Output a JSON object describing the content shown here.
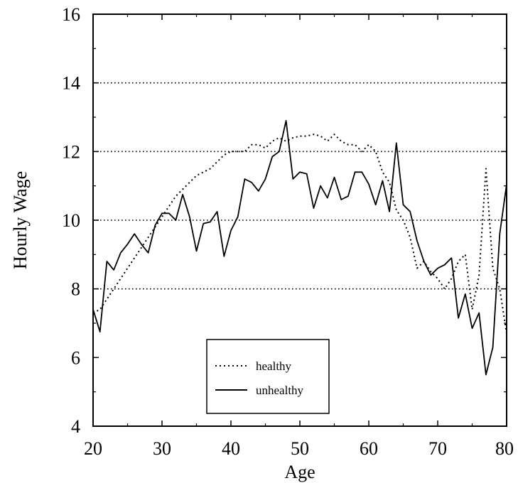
{
  "chart_data": {
    "type": "line",
    "title": "",
    "xlabel": "Age",
    "ylabel": "Hourly Wage",
    "xlim": [
      20,
      80
    ],
    "ylim": [
      4,
      16
    ],
    "xticks": [
      "20",
      "30",
      "40",
      "50",
      "60",
      "70",
      "80"
    ],
    "yticks": [
      "4",
      "6",
      "8",
      "10",
      "12",
      "14",
      "16"
    ],
    "grid": "horizontal dotted lines at 8, 10, 12, 14",
    "legend": {
      "placement": "bottom-left"
    },
    "series": [
      {
        "name": "healthy",
        "style": "dotted",
        "color": "#000000",
        "x": [
          20,
          21,
          22,
          23,
          24,
          25,
          26,
          27,
          28,
          29,
          30,
          31,
          32,
          33,
          34,
          35,
          36,
          37,
          38,
          39,
          40,
          41,
          42,
          43,
          44,
          45,
          46,
          47,
          48,
          49,
          50,
          51,
          52,
          53,
          54,
          55,
          56,
          57,
          58,
          59,
          60,
          61,
          62,
          63,
          64,
          65,
          66,
          67,
          68,
          69,
          70,
          71,
          72,
          73,
          74,
          75,
          76,
          77,
          78,
          79,
          80
        ],
        "values": [
          7.3,
          7.4,
          7.7,
          8.0,
          8.3,
          8.6,
          8.9,
          9.2,
          9.5,
          9.8,
          10.1,
          10.4,
          10.7,
          10.9,
          11.1,
          11.3,
          11.4,
          11.5,
          11.7,
          11.9,
          12.0,
          12.0,
          12.0,
          12.2,
          12.2,
          12.1,
          12.3,
          12.4,
          12.3,
          12.4,
          12.45,
          12.45,
          12.5,
          12.45,
          12.3,
          12.5,
          12.3,
          12.2,
          12.2,
          12.0,
          12.2,
          12.0,
          11.4,
          11.1,
          10.3,
          10.0,
          9.5,
          8.6,
          8.8,
          8.5,
          8.3,
          8.0,
          8.3,
          8.8,
          9.0,
          7.4,
          8.4,
          11.5,
          8.6,
          8.0,
          6.7
        ]
      },
      {
        "name": "unhealthy",
        "style": "solid",
        "color": "#000000",
        "x": [
          20,
          21,
          22,
          23,
          24,
          25,
          26,
          27,
          28,
          29,
          30,
          31,
          32,
          33,
          34,
          35,
          36,
          37,
          38,
          39,
          40,
          41,
          42,
          43,
          44,
          45,
          46,
          47,
          48,
          49,
          50,
          51,
          52,
          53,
          54,
          55,
          56,
          57,
          58,
          59,
          60,
          61,
          62,
          63,
          64,
          65,
          66,
          67,
          68,
          69,
          70,
          71,
          72,
          73,
          74,
          75,
          76,
          77,
          78,
          79,
          80
        ],
        "values": [
          7.4,
          6.75,
          8.8,
          8.55,
          9.05,
          9.3,
          9.6,
          9.3,
          9.05,
          9.85,
          10.2,
          10.2,
          10.0,
          10.75,
          10.1,
          9.1,
          9.9,
          9.95,
          10.25,
          8.95,
          9.7,
          10.1,
          11.2,
          11.1,
          10.85,
          11.2,
          11.85,
          12.0,
          12.9,
          11.2,
          11.4,
          11.35,
          10.35,
          11.0,
          10.65,
          11.25,
          10.6,
          10.7,
          11.4,
          11.4,
          11.05,
          10.45,
          11.15,
          10.25,
          12.25,
          10.45,
          10.25,
          9.4,
          8.8,
          8.4,
          8.6,
          8.7,
          8.9,
          7.15,
          7.85,
          6.85,
          7.3,
          5.5,
          6.3,
          9.6,
          11.05
        ]
      }
    ]
  }
}
